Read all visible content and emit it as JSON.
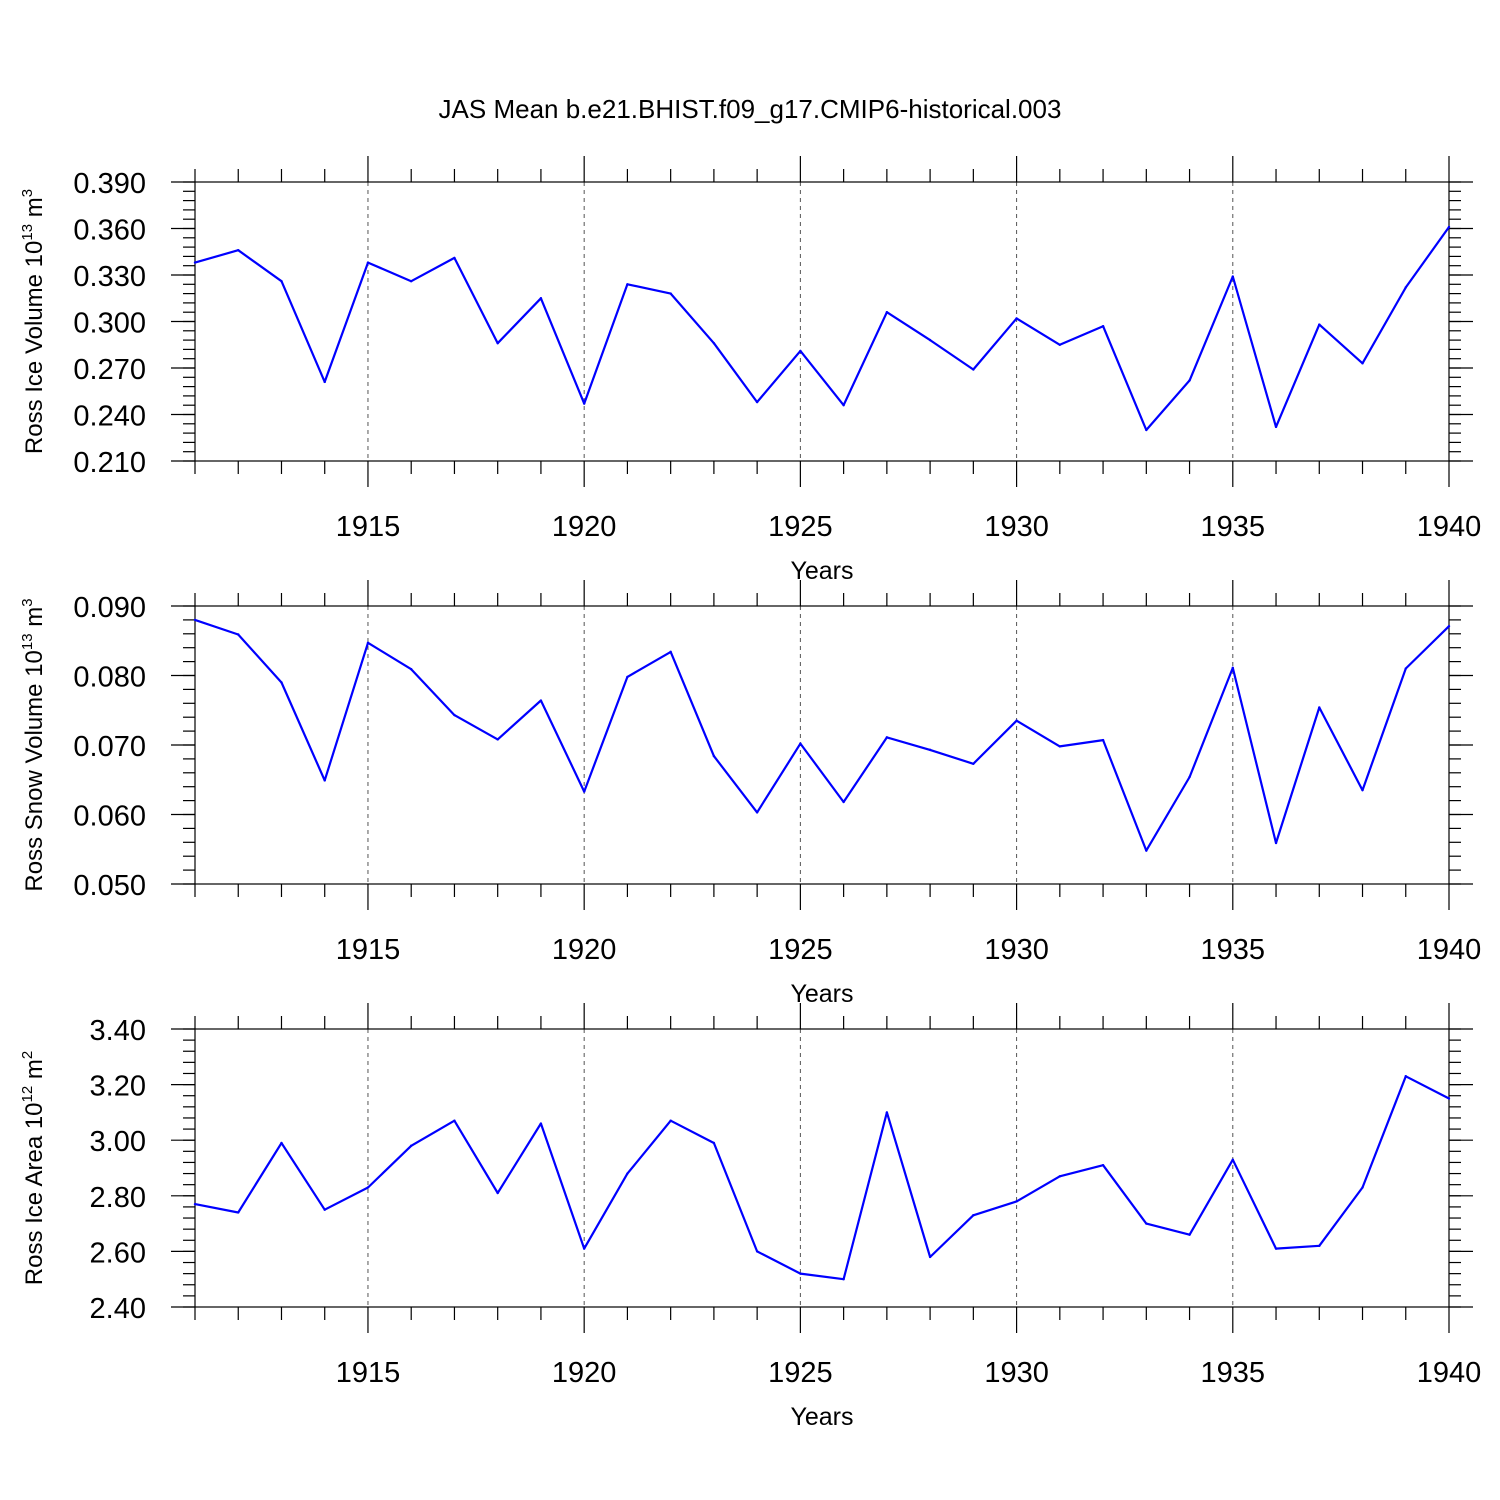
{
  "title": "JAS Mean b.e21.BHIST.f09_g17.CMIP6-historical.003",
  "colors": {
    "line": "#0000ff",
    "axis": "#000000",
    "grid": "#555555"
  },
  "chart_data": [
    {
      "type": "line",
      "title": "JAS Mean b.e21.BHIST.f09_g17.CMIP6-historical.003",
      "xlabel": "Years",
      "ylabel_main": "Ross Ice Volume 10",
      "ylabel_exp": "13",
      "ylabel_unit": " m",
      "ylabel_unit_exp": "3",
      "x": [
        1911,
        1912,
        1913,
        1914,
        1915,
        1916,
        1917,
        1918,
        1919,
        1920,
        1921,
        1922,
        1923,
        1924,
        1925,
        1926,
        1927,
        1928,
        1929,
        1930,
        1931,
        1932,
        1933,
        1934,
        1935,
        1936,
        1937,
        1938,
        1939,
        1940
      ],
      "series": [
        {
          "name": "Ross Ice Volume",
          "values": [
            0.338,
            0.346,
            0.326,
            0.261,
            0.338,
            0.326,
            0.341,
            0.286,
            0.315,
            0.247,
            0.324,
            0.318,
            0.286,
            0.248,
            0.281,
            0.246,
            0.306,
            0.288,
            0.269,
            0.302,
            0.285,
            0.297,
            0.23,
            0.262,
            0.329,
            0.232,
            0.298,
            0.273,
            0.322,
            0.361
          ]
        }
      ],
      "xlim": [
        1911,
        1940
      ],
      "ylim": [
        0.21,
        0.39
      ],
      "xticks": [
        "1915",
        "1920",
        "1925",
        "1930",
        "1935",
        "1940"
      ],
      "xtick_values": [
        1915,
        1920,
        1925,
        1930,
        1935,
        1940
      ],
      "yticks": [
        "0.210",
        "0.240",
        "0.270",
        "0.300",
        "0.330",
        "0.360",
        "0.390"
      ],
      "ytick_values": [
        0.21,
        0.24,
        0.27,
        0.3,
        0.33,
        0.36,
        0.39
      ],
      "y_minor_step": 0.006,
      "grid": "dashed vertical at major x ticks"
    },
    {
      "type": "line",
      "xlabel": "Years",
      "ylabel_main": "Ross Snow Volume 10",
      "ylabel_exp": "13",
      "ylabel_unit": " m",
      "ylabel_unit_exp": "3",
      "x": [
        1911,
        1912,
        1913,
        1914,
        1915,
        1916,
        1917,
        1918,
        1919,
        1920,
        1921,
        1922,
        1923,
        1924,
        1925,
        1926,
        1927,
        1928,
        1929,
        1930,
        1931,
        1932,
        1933,
        1934,
        1935,
        1936,
        1937,
        1938,
        1939,
        1940
      ],
      "series": [
        {
          "name": "Ross Snow Volume",
          "values": [
            0.088,
            0.0859,
            0.079,
            0.0649,
            0.0847,
            0.0809,
            0.0743,
            0.0708,
            0.0764,
            0.0633,
            0.0798,
            0.0834,
            0.0684,
            0.0603,
            0.0702,
            0.0618,
            0.0711,
            0.0693,
            0.0673,
            0.0735,
            0.0698,
            0.0707,
            0.0548,
            0.0654,
            0.0811,
            0.0559,
            0.0754,
            0.0635,
            0.081,
            0.0871
          ]
        }
      ],
      "xlim": [
        1911,
        1940
      ],
      "ylim": [
        0.05,
        0.09
      ],
      "xticks": [
        "1915",
        "1920",
        "1925",
        "1930",
        "1935",
        "1940"
      ],
      "xtick_values": [
        1915,
        1920,
        1925,
        1930,
        1935,
        1940
      ],
      "yticks": [
        "0.050",
        "0.060",
        "0.070",
        "0.080",
        "0.090"
      ],
      "ytick_values": [
        0.05,
        0.06,
        0.07,
        0.08,
        0.09
      ],
      "y_minor_step": 0.002,
      "grid": "dashed vertical at major x ticks"
    },
    {
      "type": "line",
      "xlabel": "Years",
      "ylabel_main": "Ross Ice Area 10",
      "ylabel_exp": "12",
      "ylabel_unit": " m",
      "ylabel_unit_exp": "2",
      "x": [
        1911,
        1912,
        1913,
        1914,
        1915,
        1916,
        1917,
        1918,
        1919,
        1920,
        1921,
        1922,
        1923,
        1924,
        1925,
        1926,
        1927,
        1928,
        1929,
        1930,
        1931,
        1932,
        1933,
        1934,
        1935,
        1936,
        1937,
        1938,
        1939,
        1940
      ],
      "series": [
        {
          "name": "Ross Ice Area",
          "values": [
            2.77,
            2.74,
            2.99,
            2.75,
            2.83,
            2.98,
            3.07,
            2.81,
            3.06,
            2.61,
            2.88,
            3.07,
            2.99,
            2.6,
            2.52,
            2.5,
            3.1,
            2.58,
            2.73,
            2.78,
            2.87,
            2.91,
            2.7,
            2.66,
            2.93,
            2.61,
            2.62,
            2.83,
            3.23,
            3.15
          ]
        }
      ],
      "xlim": [
        1911,
        1940
      ],
      "ylim": [
        2.4,
        3.4
      ],
      "xticks": [
        "1915",
        "1920",
        "1925",
        "1930",
        "1935",
        "1940"
      ],
      "xtick_values": [
        1915,
        1920,
        1925,
        1930,
        1935,
        1940
      ],
      "yticks": [
        "2.40",
        "2.60",
        "2.80",
        "3.00",
        "3.20",
        "3.40"
      ],
      "ytick_values": [
        2.4,
        2.6,
        2.8,
        3.0,
        3.2,
        3.4
      ],
      "y_minor_step": 0.04,
      "grid": "dashed vertical at major x ticks"
    }
  ]
}
